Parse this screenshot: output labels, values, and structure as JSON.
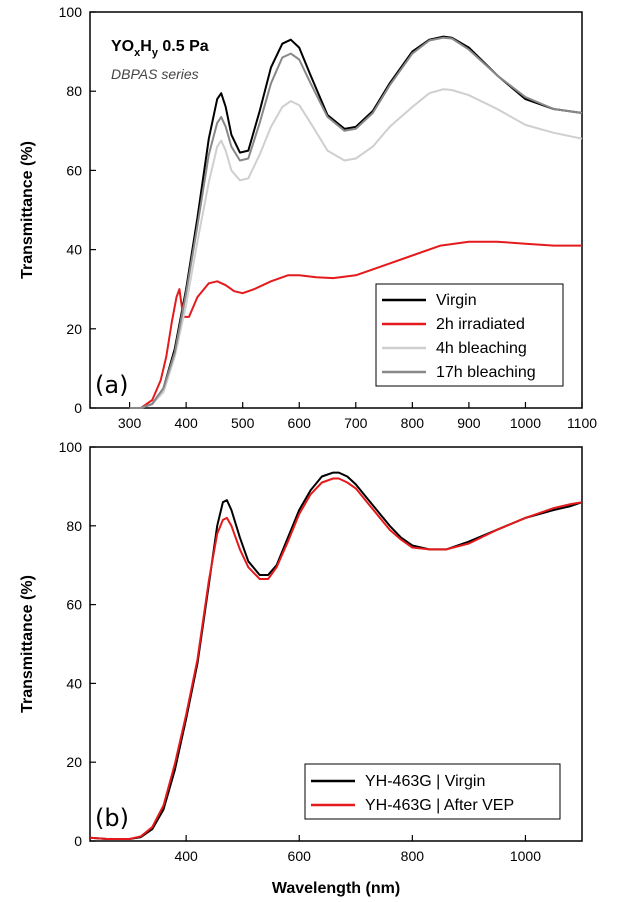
{
  "chart_data": [
    {
      "type": "line",
      "panel_label": "(a)",
      "annotation": {
        "title_main": "YO",
        "title_sub1": "x",
        "title_mid": "H",
        "title_sub2": "y",
        "title_tail": " 0.5 Pa",
        "subtitle": "DBPAS series"
      },
      "xlabel": "",
      "ylabel": "Transmittance (%)",
      "xlim": [
        230,
        1100
      ],
      "ylim": [
        0,
        100
      ],
      "xticks": [
        300,
        400,
        500,
        600,
        700,
        800,
        900,
        1000,
        1100
      ],
      "yticks": [
        0,
        20,
        40,
        60,
        80,
        100
      ],
      "legend_position": "bottom-right",
      "series": [
        {
          "name": "Virgin",
          "color": "#000000",
          "x": [
            300,
            320,
            340,
            360,
            380,
            400,
            420,
            440,
            455,
            462,
            470,
            480,
            495,
            510,
            530,
            550,
            570,
            585,
            600,
            620,
            650,
            680,
            700,
            730,
            760,
            800,
            830,
            855,
            870,
            900,
            950,
            1000,
            1050,
            1100
          ],
          "y": [
            0,
            0,
            1,
            5,
            15,
            30,
            48,
            68,
            78,
            79.5,
            76,
            69,
            64.5,
            65,
            75,
            86,
            92,
            93,
            91,
            84,
            74,
            70.5,
            71,
            75,
            82,
            90,
            93,
            93.8,
            93.5,
            91,
            84,
            78,
            75.5,
            74.5
          ]
        },
        {
          "name": "2h irradiated",
          "color": "#e41a1c",
          "x": [
            300,
            320,
            340,
            355,
            365,
            375,
            383,
            388,
            395,
            405,
            420,
            440,
            455,
            470,
            485,
            500,
            520,
            550,
            580,
            600,
            630,
            660,
            700,
            750,
            800,
            850,
            900,
            950,
            1000,
            1050,
            1100
          ],
          "y": [
            0,
            0,
            2,
            7,
            13,
            22,
            28,
            30,
            23,
            23,
            28,
            31.5,
            32,
            31,
            29.5,
            29,
            30,
            32,
            33.5,
            33.5,
            33,
            32.8,
            33.5,
            36,
            38.5,
            41,
            42,
            42,
            41.5,
            41,
            41
          ]
        },
        {
          "name": "4h bleaching",
          "color": "#cfcfcf",
          "x": [
            300,
            320,
            340,
            360,
            380,
            400,
            420,
            440,
            455,
            462,
            470,
            480,
            495,
            510,
            530,
            550,
            570,
            585,
            600,
            620,
            650,
            680,
            700,
            730,
            760,
            800,
            830,
            855,
            870,
            900,
            950,
            1000,
            1050,
            1100
          ],
          "y": [
            0,
            0,
            1,
            4,
            13,
            26,
            42,
            57,
            66,
            67.5,
            65,
            60,
            57.5,
            58,
            64,
            71,
            76,
            77.5,
            76.5,
            72,
            65,
            62.5,
            63,
            66,
            71,
            76,
            79.5,
            80.5,
            80.3,
            79,
            75.5,
            71.5,
            69.5,
            68
          ]
        },
        {
          "name": "17h bleaching",
          "color": "#888888",
          "x": [
            300,
            320,
            340,
            360,
            380,
            400,
            420,
            440,
            455,
            462,
            470,
            480,
            495,
            510,
            530,
            550,
            570,
            585,
            600,
            620,
            650,
            680,
            700,
            730,
            760,
            800,
            830,
            855,
            870,
            900,
            950,
            1000,
            1050,
            1100
          ],
          "y": [
            0,
            0,
            1,
            5,
            14,
            29,
            46,
            64,
            72,
            73.5,
            71,
            66,
            62.5,
            63,
            72,
            82,
            88.5,
            89.5,
            88,
            82,
            73.5,
            70,
            70.5,
            74.5,
            81.5,
            89.5,
            92.8,
            93.5,
            93.3,
            90.5,
            84,
            78.5,
            75.5,
            74.5
          ]
        }
      ]
    },
    {
      "type": "line",
      "panel_label": "(b)",
      "xlabel": "Wavelength (nm)",
      "ylabel": "Transmittance (%)",
      "xlim": [
        230,
        1100
      ],
      "ylim": [
        0,
        100
      ],
      "xticks": [
        400,
        600,
        800,
        1000
      ],
      "yticks": [
        0,
        20,
        40,
        60,
        80,
        100
      ],
      "legend_position": "bottom-right",
      "series": [
        {
          "name": "YH-463G | Virgin",
          "color": "#000000",
          "x": [
            230,
            260,
            300,
            320,
            340,
            360,
            380,
            400,
            420,
            440,
            455,
            465,
            472,
            480,
            495,
            510,
            530,
            545,
            560,
            580,
            600,
            620,
            640,
            660,
            670,
            685,
            700,
            720,
            740,
            760,
            780,
            800,
            830,
            860,
            900,
            950,
            1000,
            1050,
            1080,
            1100
          ],
          "y": [
            0.8,
            0.5,
            0.5,
            1,
            3,
            8,
            18,
            31,
            45,
            65,
            80,
            86,
            86.5,
            84,
            77,
            71,
            67.5,
            67.5,
            70,
            77,
            84,
            89,
            92.5,
            93.5,
            93.5,
            92.5,
            90.5,
            87,
            83.5,
            80,
            77,
            75,
            74,
            74,
            76,
            79,
            82,
            84,
            85,
            86
          ]
        },
        {
          "name": "YH-463G | After VEP",
          "color": "#e41a1c",
          "x": [
            230,
            260,
            300,
            320,
            340,
            360,
            380,
            400,
            420,
            440,
            455,
            465,
            472,
            480,
            495,
            510,
            530,
            545,
            560,
            580,
            600,
            620,
            640,
            660,
            670,
            685,
            700,
            720,
            740,
            760,
            780,
            800,
            830,
            860,
            900,
            950,
            1000,
            1050,
            1080,
            1100
          ],
          "y": [
            0.8,
            0.5,
            0.5,
            1.2,
            3.5,
            9,
            19.5,
            32,
            46,
            66,
            78,
            81.5,
            82,
            80,
            74,
            69.5,
            66.5,
            66.5,
            69.5,
            76,
            83,
            88,
            91,
            92,
            92,
            91,
            89.5,
            86,
            82.5,
            79,
            76.5,
            74.5,
            74,
            74,
            75.5,
            79,
            82,
            84.5,
            85.5,
            86
          ]
        }
      ]
    }
  ]
}
